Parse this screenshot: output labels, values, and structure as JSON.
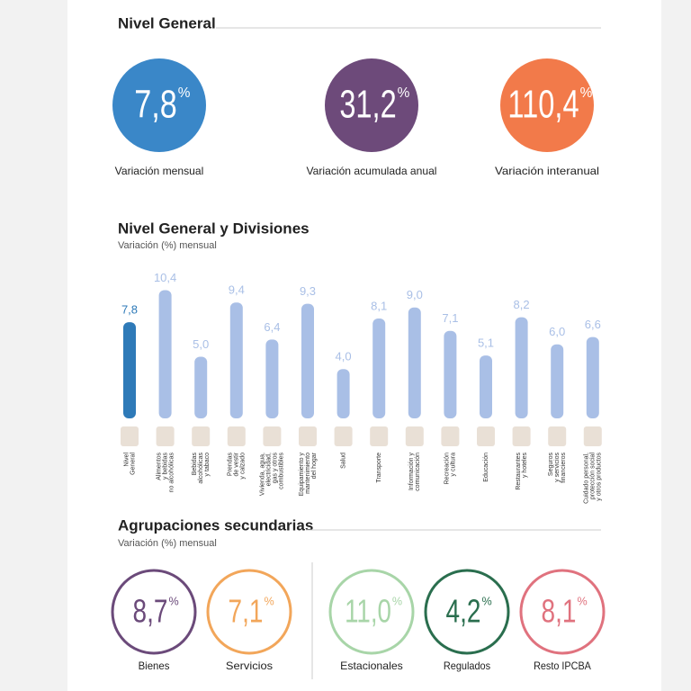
{
  "nivel_general": {
    "title": "Nivel General",
    "items": [
      {
        "value": "7,8",
        "unit": "%",
        "label": "Variación mensual",
        "color": "#3a87c8"
      },
      {
        "value": "31,2",
        "unit": "%",
        "label": "Variación acumulada anual",
        "color": "#6d4a7a"
      },
      {
        "value": "110,4",
        "unit": "%",
        "label": "Variación interanual",
        "color": "#f27a4a"
      }
    ]
  },
  "chart_data": {
    "type": "bar",
    "title": "Nivel General y Divisiones",
    "subtitle": "Variación (%) mensual",
    "categories": [
      [
        "Nivel",
        "General"
      ],
      [
        "Alimentos",
        "y bebidas",
        "no alcohólicas"
      ],
      [
        "Bebidas",
        "alcohólicas",
        "y tabaco"
      ],
      [
        "Prendas",
        "de vestir",
        "y calzado"
      ],
      [
        "Vivienda, agua,",
        "electricidad,",
        "gas y otros",
        "combustibles"
      ],
      [
        "Equipamiento y",
        "mantenimiento",
        "del hogar"
      ],
      [
        "Salud"
      ],
      [
        "Transporte"
      ],
      [
        "Información y",
        "comunicación"
      ],
      [
        "Recreación",
        "y cultura"
      ],
      [
        "Educación"
      ],
      [
        "Restaurantes",
        "y hoteles"
      ],
      [
        "Seguros",
        "y servicios",
        "financieros"
      ],
      [
        "Cuidado personal,",
        "protección social",
        "y otros productos"
      ]
    ],
    "values": [
      7.8,
      10.4,
      5.0,
      9.4,
      6.4,
      9.3,
      4.0,
      8.1,
      9.0,
      7.1,
      5.1,
      8.2,
      6.0,
      6.6
    ],
    "value_labels": [
      "7,8",
      "10,4",
      "5,0",
      "9,4",
      "6,4",
      "9,3",
      "4,0",
      "8,1",
      "9,0",
      "7,1",
      "5,1",
      "8,2",
      "6,0",
      "6,6"
    ],
    "colors": [
      "#2e7ab8",
      "#a9bfe6",
      "#a9bfe6",
      "#a9bfe6",
      "#a9bfe6",
      "#a9bfe6",
      "#a9bfe6",
      "#a9bfe6",
      "#a9bfe6",
      "#a9bfe6",
      "#a9bfe6",
      "#a9bfe6",
      "#a9bfe6",
      "#a9bfe6"
    ]
  },
  "agrupaciones": {
    "title": "Agrupaciones secundarias",
    "subtitle": "Variación (%) mensual",
    "items": [
      {
        "value": "8,7",
        "unit": "%",
        "label": "Bienes",
        "color": "#6b4a7a"
      },
      {
        "value": "7,1",
        "unit": "%",
        "label": "Servicios",
        "color": "#f2a65a"
      },
      {
        "value": "11,0",
        "unit": "%",
        "label": "Estacionales",
        "color": "#a8d5a8"
      },
      {
        "value": "4,2",
        "unit": "%",
        "label": "Regulados",
        "color": "#2a6e4e"
      },
      {
        "value": "8,1",
        "unit": "%",
        "label": "Resto IPCBA",
        "color": "#e0727e"
      }
    ]
  }
}
